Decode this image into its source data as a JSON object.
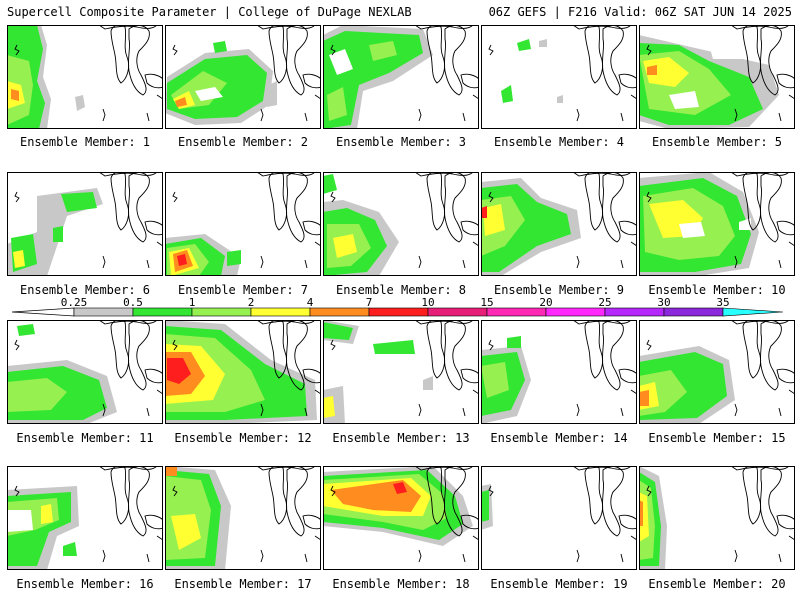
{
  "header": {
    "left": "Supercell Composite Parameter | College of DuPage NEXLAB",
    "right": "06Z GEFS | F216 Valid: 06Z SAT JUN 14 2025"
  },
  "colorbar": {
    "labels": [
      "0.25",
      "0.5",
      "1",
      "2",
      "4",
      "7",
      "10",
      "15",
      "20",
      "25",
      "30",
      "35"
    ],
    "colors": [
      "#c8c8c8",
      "#32e632",
      "#96f050",
      "#ffff32",
      "#ff8c1e",
      "#ff1e1e",
      "#e61e78",
      "#ff28b4",
      "#ff28ff",
      "#b428ff",
      "#8c28dc",
      "#28ffff"
    ]
  },
  "members": [
    {
      "label": "Ensemble Member: 1"
    },
    {
      "label": "Ensemble Member: 2"
    },
    {
      "label": "Ensemble Member: 3"
    },
    {
      "label": "Ensemble Member: 4"
    },
    {
      "label": "Ensemble Member: 5"
    },
    {
      "label": "Ensemble Member: 6"
    },
    {
      "label": "Ensemble Member: 7"
    },
    {
      "label": "Ensemble Member: 8"
    },
    {
      "label": "Ensemble Member: 9"
    },
    {
      "label": "Ensemble Member: 10"
    },
    {
      "label": "Ensemble Member: 11"
    },
    {
      "label": "Ensemble Member: 12"
    },
    {
      "label": "Ensemble Member: 13"
    },
    {
      "label": "Ensemble Member: 14"
    },
    {
      "label": "Ensemble Member: 15"
    },
    {
      "label": "Ensemble Member: 16"
    },
    {
      "label": "Ensemble Member: 17"
    },
    {
      "label": "Ensemble Member: 18"
    },
    {
      "label": "Ensemble Member: 19"
    },
    {
      "label": "Ensemble Member: 20"
    }
  ]
}
